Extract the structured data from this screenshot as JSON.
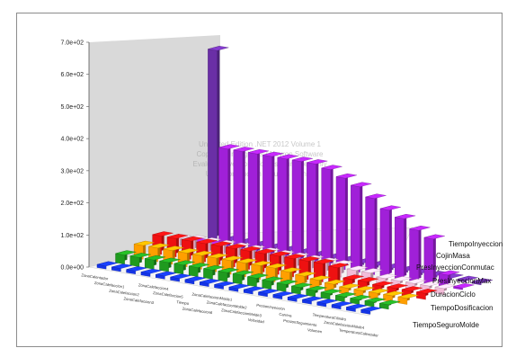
{
  "chart_data": {
    "type": "bar",
    "subtype": "3d-clustered-depth",
    "y_ticks": [
      "0.0e+00",
      "1.0e+02",
      "2.0e+02",
      "3.0e+02",
      "4.0e+02",
      "5.0e+02",
      "6.0e+02",
      "7.0e+02"
    ],
    "ylim": [
      0,
      700
    ],
    "categories": [
      "ZonaCalentador",
      "ZonaCalefaccion1",
      "ZonaCalefaccion2",
      "ZonaCalefaccion3",
      "ZonaCalefaccion4",
      "ZonaCalefaccion5",
      "Tiempo",
      "ZonaCalefaccion6",
      "ZonaCalefaccionMolde1",
      "ZonaCalefaccionMolde2",
      "ZonaCalefaccionMolde3",
      "Velocidad",
      "PresionInyeccion",
      "Carrera",
      "PresionSeguimiento",
      "Volumen",
      "TemperaturaCilindro",
      "ZonaCalefaccionMolde4",
      "TemperaturaCalentador"
    ],
    "series": [
      {
        "name": "TiempoInyeccion",
        "color": "#6a2fa6",
        "values": [
          620,
          2,
          2,
          2,
          2,
          2,
          2,
          2,
          2,
          2,
          2,
          2,
          2,
          2,
          2,
          2,
          2,
          2,
          2
        ]
      },
      {
        "name": "CojinMasa",
        "color": "#a020d8",
        "values": [
          2,
          2,
          330,
          330,
          330,
          330,
          330,
          330,
          330,
          320,
          300,
          280,
          250,
          220,
          200,
          170,
          150,
          40,
          2
        ]
      },
      {
        "name": "PresInyeccionConmutac",
        "color": "#f2bcd8",
        "values": [
          35,
          40,
          40,
          40,
          40,
          40,
          40,
          40,
          40,
          40,
          40,
          40,
          30,
          30,
          20,
          20,
          20,
          20,
          20
        ]
      },
      {
        "name": "PresInyeccionMax",
        "color": "#ee1111",
        "values": [
          60,
          60,
          60,
          60,
          60,
          60,
          60,
          60,
          60,
          60,
          60,
          60,
          55,
          25,
          25,
          20,
          20,
          20,
          20
        ]
      },
      {
        "name": "DuracionCiclo",
        "color": "#ff9f00",
        "values": [
          45,
          45,
          45,
          45,
          45,
          45,
          45,
          45,
          45,
          45,
          40,
          35,
          30,
          25,
          20,
          20,
          20,
          20,
          20
        ]
      },
      {
        "name": "TiempoDosificacion",
        "color": "#1f9a1f",
        "values": [
          30,
          30,
          30,
          30,
          30,
          30,
          30,
          30,
          30,
          28,
          26,
          24,
          22,
          20,
          18,
          16,
          15,
          15,
          15
        ]
      },
      {
        "name": "TiempoSeguroMolde",
        "color": "#1434e8",
        "values": [
          10,
          10,
          10,
          10,
          10,
          10,
          10,
          10,
          10,
          10,
          10,
          10,
          10,
          10,
          10,
          10,
          10,
          10,
          10
        ]
      }
    ],
    "watermark": [
      "Unlimited Edition .NET 2012 Volume 1",
      "Copyright Infragistics / Nevron Software",
      "Evaluation version - for test purposes only",
      "Use in production requires license"
    ]
  }
}
